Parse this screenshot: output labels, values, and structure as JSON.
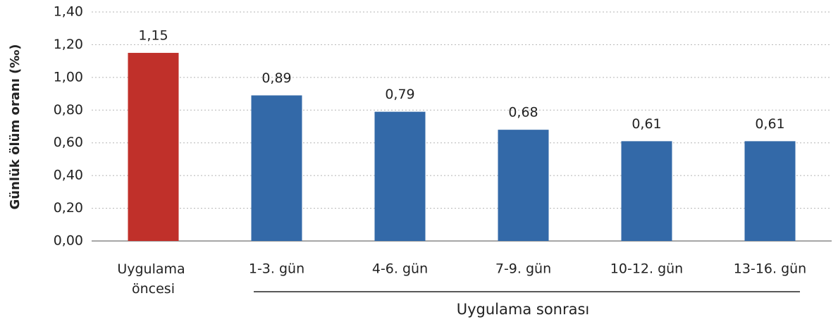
{
  "chart_data": {
    "type": "bar",
    "ylabel": "Günlük ölüm oranı (‰)",
    "categories": [
      "Uygulama öncesi",
      "1-3. gün",
      "4-6. gün",
      "7-9. gün",
      "10-12. gün",
      "13-16. gün"
    ],
    "values": [
      1.15,
      0.89,
      0.79,
      0.68,
      0.61,
      0.61
    ],
    "value_labels": [
      "1,15",
      "0,89",
      "0,79",
      "0,68",
      "0,61",
      "0,61"
    ],
    "colors": [
      "#c0302a",
      "#3369a8",
      "#3369a8",
      "#3369a8",
      "#3369a8",
      "#3369a8"
    ],
    "group_label": "Uygulama sonrası",
    "ylim": [
      0,
      1.4
    ],
    "yticks": [
      {
        "value": 0,
        "label": "0,00"
      },
      {
        "value": 0.2,
        "label": "0,20"
      },
      {
        "value": 0.4,
        "label": "0,40"
      },
      {
        "value": 0.6,
        "label": "0,60"
      },
      {
        "value": 0.8,
        "label": "0,80"
      },
      {
        "value": 1.0,
        "label": "1,00"
      },
      {
        "value": 1.2,
        "label": "1,20"
      },
      {
        "value": 1.4,
        "label": "1,40"
      }
    ],
    "grid": true
  }
}
